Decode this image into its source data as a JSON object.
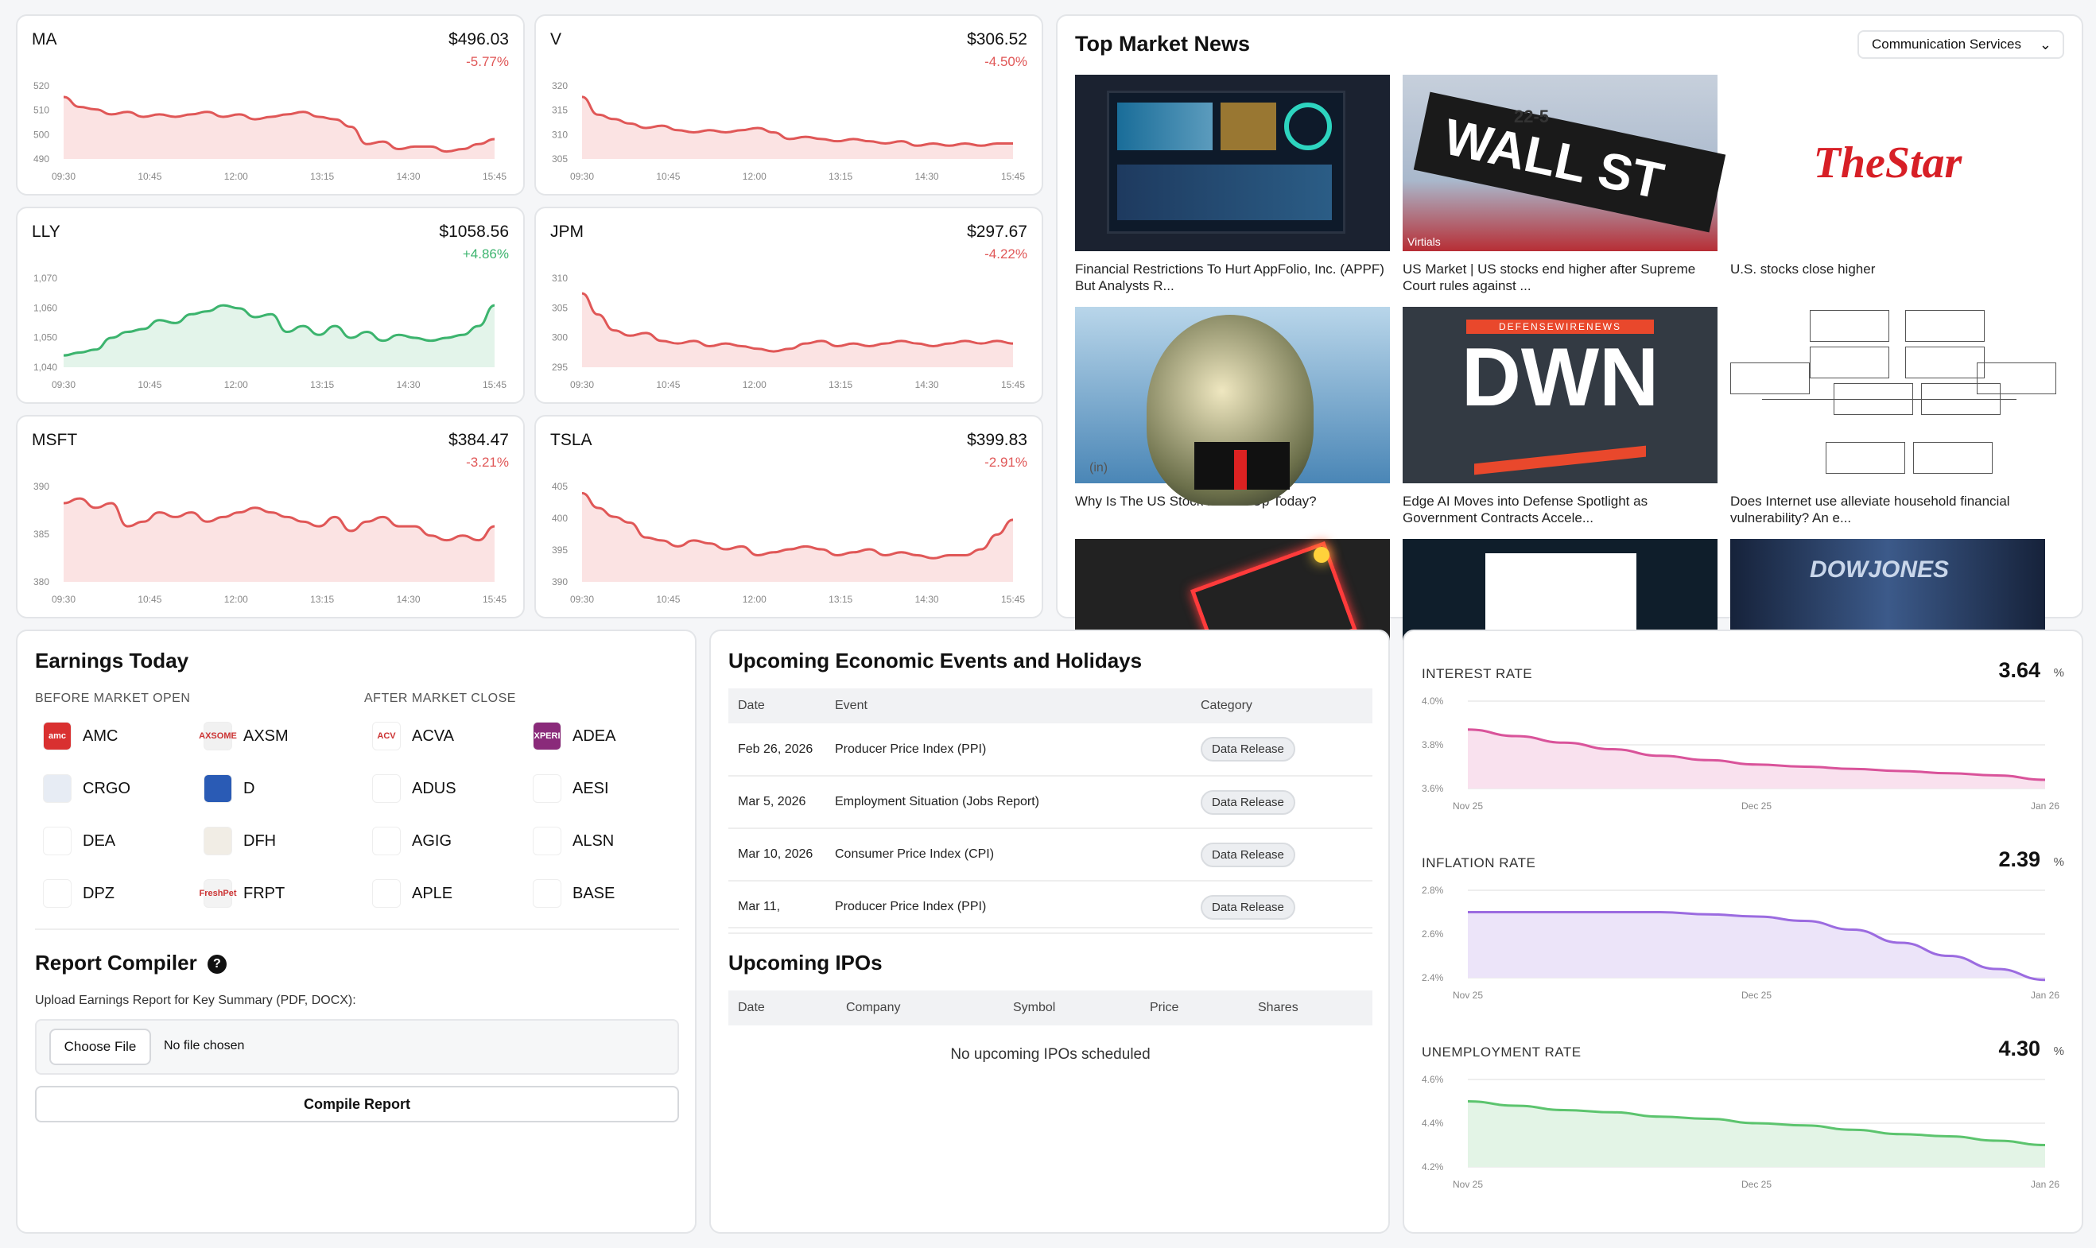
{
  "stocks": [
    {
      "symbol": "MA",
      "price": "$496.03",
      "change": "-5.77%",
      "dir": "neg",
      "color": "#e05757",
      "fill": "#fbe3e3",
      "y_ticks": [
        "520",
        "510",
        "500",
        "490"
      ],
      "y_min": 488,
      "y_max": 522,
      "x_ticks": [
        "09:30",
        "10:45",
        "12:00",
        "13:15",
        "14:30",
        "15:45"
      ],
      "values": [
        513,
        509,
        508,
        506,
        507,
        505,
        506,
        505,
        506,
        507,
        505,
        506,
        504,
        505,
        506,
        507,
        505,
        504,
        501,
        494,
        495,
        492,
        493,
        493,
        491,
        492,
        494,
        496
      ]
    },
    {
      "symbol": "V",
      "price": "$306.52",
      "change": "-4.50%",
      "dir": "neg",
      "color": "#e05757",
      "fill": "#fbe3e3",
      "y_ticks": [
        "320",
        "315",
        "310",
        "305"
      ],
      "y_min": 303,
      "y_max": 322,
      "x_ticks": [
        "09:30",
        "10:45",
        "12:00",
        "13:15",
        "14:30",
        "15:45"
      ],
      "values": [
        317,
        313,
        312,
        311,
        310,
        310.5,
        309.5,
        309,
        309.5,
        309,
        309.5,
        310,
        309,
        307.5,
        308,
        307.5,
        307,
        307.5,
        307,
        306.5,
        307,
        306,
        306.5,
        306,
        306.5,
        306,
        306.5,
        306.5
      ]
    },
    {
      "symbol": "LLY",
      "price": "$1058.56",
      "change": "+4.86%",
      "dir": "pos",
      "color": "#3cb46e",
      "fill": "#e3f4ea",
      "y_ticks": [
        "1,070",
        "1,060",
        "1,050",
        "1,040"
      ],
      "y_min": 1038,
      "y_max": 1072,
      "x_ticks": [
        "09:30",
        "10:45",
        "12:00",
        "13:15",
        "14:30",
        "15:45"
      ],
      "values": [
        1042,
        1043,
        1044,
        1048,
        1050,
        1051,
        1054,
        1053,
        1056,
        1057,
        1059,
        1058,
        1055,
        1056,
        1050,
        1052,
        1049,
        1052,
        1048,
        1050,
        1047,
        1049,
        1048,
        1047,
        1048,
        1049,
        1052,
        1059
      ]
    },
    {
      "symbol": "JPM",
      "price": "$297.67",
      "change": "-4.22%",
      "dir": "neg",
      "color": "#e05757",
      "fill": "#fbe3e3",
      "y_ticks": [
        "310",
        "305",
        "300",
        "295"
      ],
      "y_min": 293,
      "y_max": 312,
      "x_ticks": [
        "09:30",
        "10:45",
        "12:00",
        "13:15",
        "14:30",
        "15:45"
      ],
      "values": [
        307,
        303,
        300,
        299,
        299.5,
        298,
        297.5,
        298,
        297,
        297.5,
        297,
        296.5,
        296,
        296.5,
        297.5,
        298,
        297,
        297.5,
        297,
        297.5,
        298,
        297.5,
        297,
        297.5,
        298,
        297.5,
        298,
        297.5
      ]
    },
    {
      "symbol": "MSFT",
      "price": "$384.47",
      "change": "-3.21%",
      "dir": "neg",
      "color": "#e05757",
      "fill": "#fbe3e3",
      "y_ticks": [
        "390",
        "385",
        "380"
      ],
      "y_min": 379.5,
      "y_max": 391,
      "x_ticks": [
        "09:30",
        "10:45",
        "12:00",
        "13:15",
        "14:30",
        "15:45"
      ],
      "values": [
        388,
        388.5,
        387.5,
        388,
        385.5,
        386,
        387,
        386.5,
        387,
        386,
        386.5,
        387,
        387.5,
        387,
        386.5,
        386,
        385.5,
        386.5,
        385,
        386,
        386.5,
        385.5,
        385.5,
        384.5,
        384,
        384.5,
        384,
        385.5
      ]
    },
    {
      "symbol": "TSLA",
      "price": "$399.83",
      "change": "-2.91%",
      "dir": "neg",
      "color": "#e05757",
      "fill": "#fbe3e3",
      "y_ticks": [
        "405",
        "400",
        "395",
        "390"
      ],
      "y_min": 389,
      "y_max": 407,
      "x_ticks": [
        "09:30",
        "10:45",
        "12:00",
        "13:15",
        "14:30",
        "15:45"
      ],
      "values": [
        404,
        401.5,
        400,
        399,
        396.5,
        396,
        395,
        396,
        395.5,
        394.5,
        395,
        393.5,
        394,
        394.5,
        395,
        394.5,
        393.5,
        394,
        394.5,
        393.5,
        394,
        393.5,
        393,
        393.5,
        393.5,
        394.5,
        397,
        399.5
      ]
    }
  ],
  "news": {
    "title": "Top Market News",
    "filter": "Communication Services",
    "items": [
      {
        "caption": "Financial Restrictions To Hurt AppFolio, Inc. (APPF) But Analysts R...",
        "thumb": "dashboard"
      },
      {
        "caption": "US Market | US stocks end higher after Supreme Court rules against ...",
        "thumb": "wallst",
        "sign_text": "WALL ST",
        "sign_num": "22-5",
        "watermark": "Virtials"
      },
      {
        "caption": "U.S. stocks close higher",
        "thumb": "thestar",
        "logo_text": "TheStar"
      },
      {
        "caption": "Why Is The US Stock Market Up Today?",
        "thumb": "trump",
        "watermark": "(in)"
      },
      {
        "caption": "Edge AI Moves into Defense Spotlight as Government Contracts Accele...",
        "thumb": "dwn",
        "banner": "DEFENSEWIRENEWS",
        "logo_text": "DWN"
      },
      {
        "caption": "Does Internet use alleviate household financial vulnerability? An e...",
        "thumb": "diagram"
      },
      {
        "caption": "",
        "thumb": "neon"
      },
      {
        "caption": "",
        "thumb": "dark"
      },
      {
        "caption": "",
        "thumb": "dow",
        "logo_text": "DOWJONES"
      }
    ]
  },
  "earnings": {
    "title": "Earnings Today",
    "before_label": "BEFORE MARKET OPEN",
    "after_label": "AFTER MARKET CLOSE",
    "before": [
      {
        "sym": "AMC",
        "color": "#d93030"
      },
      {
        "sym": "AXSM",
        "color": "#f1f1f1"
      },
      {
        "sym": "CRGO",
        "color": "#e7ecf4"
      },
      {
        "sym": "D",
        "color": "#2a5bb5"
      },
      {
        "sym": "DEA",
        "color": "#ffffff"
      },
      {
        "sym": "DFH",
        "color": "#f1ede5"
      },
      {
        "sym": "DPZ",
        "color": "#ffffff"
      },
      {
        "sym": "FRPT",
        "color": "#f3f3f3"
      }
    ],
    "after": [
      {
        "sym": "ACVA",
        "color": "#ffffff"
      },
      {
        "sym": "ADEA",
        "color": "#8a2a7a"
      },
      {
        "sym": "ADUS",
        "color": "#ffffff"
      },
      {
        "sym": "AESI",
        "color": "#ffffff"
      },
      {
        "sym": "AGIG",
        "color": "#ffffff"
      },
      {
        "sym": "ALSN",
        "color": "#ffffff"
      },
      {
        "sym": "APLE",
        "color": "#ffffff"
      },
      {
        "sym": "BASE",
        "color": "#ffffff"
      }
    ],
    "logo_text": {
      "AMC": "amc",
      "AXSM": "AXSOME",
      "CRGO": "",
      "D": "",
      "DEA": "",
      "DFH": "",
      "DPZ": "",
      "FRPT": "FreshPet",
      "ACVA": "ACV",
      "ADEA": "XPERI",
      "ADUS": "",
      "AESI": "",
      "AGIG": "",
      "ALSN": "",
      "APLE": "",
      "BASE": ""
    }
  },
  "report": {
    "title": "Report Compiler",
    "help_icon": "?",
    "upload_label": "Upload Earnings Report for Key Summary (PDF, DOCX):",
    "choose_file": "Choose File",
    "no_file": "No file chosen",
    "compile": "Compile Report"
  },
  "events": {
    "title": "Upcoming Economic Events and Holidays",
    "headers": [
      "Date",
      "Event",
      "Category"
    ],
    "rows": [
      {
        "date": "Feb 26, 2026",
        "event": "Producer Price Index (PPI)",
        "category": "Data Release"
      },
      {
        "date": "Mar 5, 2026",
        "event": "Employment Situation (Jobs Report)",
        "category": "Data Release"
      },
      {
        "date": "Mar 10, 2026",
        "event": "Consumer Price Index (CPI)",
        "category": "Data Release"
      },
      {
        "date": "Mar 11,",
        "event": "Producer Price Index (PPI)",
        "category": "Data Release"
      }
    ]
  },
  "ipos": {
    "title": "Upcoming IPOs",
    "headers": [
      "Date",
      "Company",
      "Symbol",
      "Price",
      "Shares"
    ],
    "empty": "No upcoming IPOs scheduled"
  },
  "rates": [
    {
      "label": "INTEREST RATE",
      "value": "3.64",
      "unit": "%",
      "color": "#d9539a",
      "fill": "#f9e1ee",
      "y_ticks": [
        "4.0%",
        "3.8%",
        "3.6%"
      ],
      "y_min": 3.6,
      "y_max": 4.0,
      "x_ticks": [
        "Nov 25",
        "Dec 25",
        "Jan 26"
      ],
      "values": [
        3.87,
        3.84,
        3.81,
        3.78,
        3.75,
        3.73,
        3.71,
        3.7,
        3.69,
        3.68,
        3.67,
        3.66,
        3.64
      ]
    },
    {
      "label": "INFLATION RATE",
      "value": "2.39",
      "unit": "%",
      "color": "#9b6be0",
      "fill": "#ece4f9",
      "y_ticks": [
        "2.8%",
        "2.6%",
        "2.4%"
      ],
      "y_min": 2.4,
      "y_max": 2.8,
      "x_ticks": [
        "Nov 25",
        "Dec 25",
        "Jan 26"
      ],
      "values": [
        2.7,
        2.7,
        2.7,
        2.7,
        2.7,
        2.69,
        2.68,
        2.66,
        2.62,
        2.56,
        2.5,
        2.44,
        2.39
      ]
    },
    {
      "label": "UNEMPLOYMENT RATE",
      "value": "4.30",
      "unit": "%",
      "color": "#5cc46e",
      "fill": "#e3f4e6",
      "y_ticks": [
        "4.6%",
        "4.4%",
        "4.2%"
      ],
      "y_min": 4.2,
      "y_max": 4.6,
      "x_ticks": [
        "Nov 25",
        "Dec 25",
        "Jan 26"
      ],
      "values": [
        4.5,
        4.48,
        4.46,
        4.45,
        4.43,
        4.42,
        4.4,
        4.39,
        4.37,
        4.35,
        4.34,
        4.32,
        4.3
      ]
    }
  ]
}
